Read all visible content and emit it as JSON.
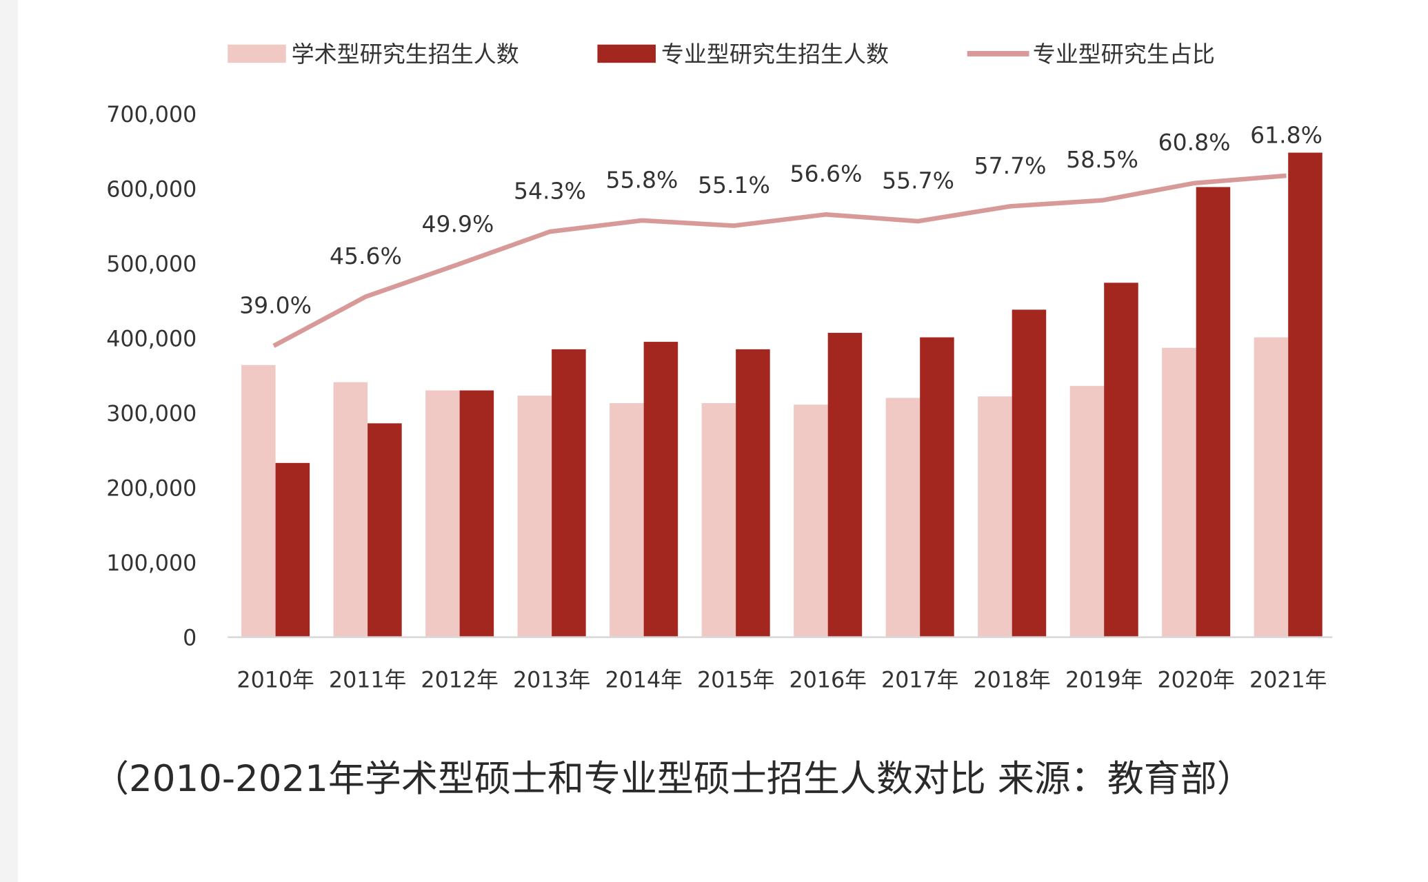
{
  "chart_data": {
    "type": "bar",
    "categories": [
      "2010年",
      "2011年",
      "2012年",
      "2013年",
      "2014年",
      "2015年",
      "2016年",
      "2017年",
      "2018年",
      "2019年",
      "2020年",
      "2021年"
    ],
    "series": [
      {
        "name": "学术型研究生招生人数",
        "type": "bar",
        "color": "#f0c8c4",
        "values": [
          364000,
          341000,
          330000,
          323000,
          313000,
          313000,
          311000,
          320000,
          322000,
          336000,
          387000,
          401000
        ]
      },
      {
        "name": "专业型研究生招生人数",
        "type": "bar",
        "color": "#a3261f",
        "values": [
          233000,
          286000,
          330000,
          385000,
          395000,
          385000,
          407000,
          401000,
          438000,
          474000,
          602000,
          648000
        ]
      },
      {
        "name": "专业型研究生占比",
        "type": "line",
        "color": "#d89a98",
        "axis": "secondary",
        "values": [
          39.0,
          45.6,
          49.9,
          54.3,
          55.8,
          55.1,
          56.6,
          55.7,
          57.7,
          58.5,
          60.8,
          61.8
        ],
        "labels": [
          "39.0%",
          "45.6%",
          "49.9%",
          "54.3%",
          "55.8%",
          "55.1%",
          "56.6%",
          "55.7%",
          "57.7%",
          "58.5%",
          "60.8%",
          "61.8%"
        ]
      }
    ],
    "ylim": [
      0,
      700000
    ],
    "yticks": [
      "0",
      "100,000",
      "200,000",
      "300,000",
      "400,000",
      "500,000",
      "600,000",
      "700,000"
    ],
    "grid": false,
    "legend": "top",
    "xlabel": "",
    "ylabel": ""
  },
  "caption": "（2010-2021年学术型硕士和专业型硕士招生人数对比  来源：教育部）"
}
